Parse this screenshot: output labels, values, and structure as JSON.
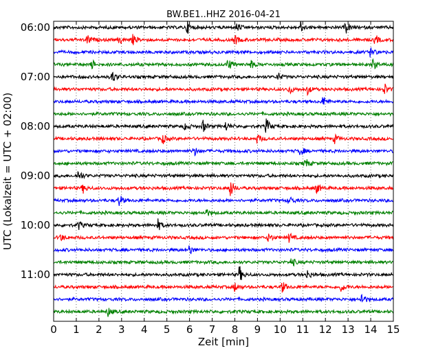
{
  "chart_data": {
    "type": "line",
    "title": "BW.BE1..HHZ 2016-04-21",
    "xlabel": "Zeit  [min]",
    "ylabel": "UTC (Lokalzeit = UTC + 02:00)",
    "xlim": [
      0,
      15
    ],
    "x_ticks": [
      0,
      1,
      2,
      3,
      4,
      5,
      6,
      7,
      8,
      9,
      10,
      11,
      12,
      13,
      14,
      15
    ],
    "x_tick_labels": [
      "0",
      "1",
      "2",
      "3",
      "4",
      "5",
      "6",
      "7",
      "8",
      "9",
      "10",
      "11",
      "12",
      "13",
      "14",
      "15"
    ],
    "y_tick_labels": [
      "06:00",
      "07:00",
      "08:00",
      "09:00",
      "10:00",
      "11:00"
    ],
    "row_start_time": "06:00",
    "row_interval_minutes": 15,
    "row_count": 24,
    "color_cycle": [
      "#000000",
      "#ff0000",
      "#0000ff",
      "#008000"
    ],
    "grid": "vertical dotted lines at each minute",
    "events": [
      {
        "row": 0,
        "minute": 5.9,
        "amp": 0.55
      },
      {
        "row": 0,
        "minute": 8.1,
        "amp": 0.4
      },
      {
        "row": 0,
        "minute": 10.9,
        "amp": 0.5
      },
      {
        "row": 0,
        "minute": 12.9,
        "amp": 0.55
      },
      {
        "row": 1,
        "minute": 1.5,
        "amp": 0.5
      },
      {
        "row": 1,
        "minute": 2.9,
        "amp": 0.45
      },
      {
        "row": 1,
        "minute": 3.5,
        "amp": 0.45
      },
      {
        "row": 1,
        "minute": 8.0,
        "amp": 0.45
      },
      {
        "row": 1,
        "minute": 14.2,
        "amp": 0.45
      },
      {
        "row": 2,
        "minute": 14.0,
        "amp": 0.5
      },
      {
        "row": 3,
        "minute": 1.7,
        "amp": 0.4
      },
      {
        "row": 3,
        "minute": 7.7,
        "amp": 0.6
      },
      {
        "row": 3,
        "minute": 8.7,
        "amp": 0.4
      },
      {
        "row": 3,
        "minute": 14.1,
        "amp": 0.5
      },
      {
        "row": 4,
        "minute": 2.6,
        "amp": 0.55
      },
      {
        "row": 4,
        "minute": 9.9,
        "amp": 0.4
      },
      {
        "row": 5,
        "minute": 10.4,
        "amp": 0.45
      },
      {
        "row": 5,
        "minute": 11.2,
        "amp": 0.45
      },
      {
        "row": 5,
        "minute": 14.6,
        "amp": 0.55
      },
      {
        "row": 6,
        "minute": 11.9,
        "amp": 0.5
      },
      {
        "row": 8,
        "minute": 5.8,
        "amp": 0.4
      },
      {
        "row": 8,
        "minute": 6.6,
        "amp": 0.55
      },
      {
        "row": 8,
        "minute": 7.6,
        "amp": 0.45
      },
      {
        "row": 8,
        "minute": 9.4,
        "amp": 0.8
      },
      {
        "row": 9,
        "minute": 4.8,
        "amp": 0.5
      },
      {
        "row": 9,
        "minute": 9.0,
        "amp": 0.45
      },
      {
        "row": 9,
        "minute": 12.4,
        "amp": 0.4
      },
      {
        "row": 10,
        "minute": 6.2,
        "amp": 0.45
      },
      {
        "row": 10,
        "minute": 10.9,
        "amp": 0.45
      },
      {
        "row": 11,
        "minute": 11.1,
        "amp": 0.5
      },
      {
        "row": 12,
        "minute": 1.1,
        "amp": 0.55
      },
      {
        "row": 13,
        "minute": 1.3,
        "amp": 0.4
      },
      {
        "row": 13,
        "minute": 7.8,
        "amp": 0.9
      },
      {
        "row": 13,
        "minute": 11.6,
        "amp": 0.5
      },
      {
        "row": 14,
        "minute": 2.9,
        "amp": 0.55
      },
      {
        "row": 14,
        "minute": 10.4,
        "amp": 0.45
      },
      {
        "row": 15,
        "minute": 6.7,
        "amp": 0.45
      },
      {
        "row": 16,
        "minute": 1.1,
        "amp": 0.4
      },
      {
        "row": 16,
        "minute": 4.6,
        "amp": 0.55
      },
      {
        "row": 17,
        "minute": 0.3,
        "amp": 0.35
      },
      {
        "row": 17,
        "minute": 9.5,
        "amp": 0.45
      },
      {
        "row": 17,
        "minute": 10.4,
        "amp": 0.45
      },
      {
        "row": 18,
        "minute": 6.0,
        "amp": 0.45
      },
      {
        "row": 19,
        "minute": 10.5,
        "amp": 0.45
      },
      {
        "row": 20,
        "minute": 8.2,
        "amp": 0.8
      },
      {
        "row": 20,
        "minute": 11.2,
        "amp": 0.4
      },
      {
        "row": 21,
        "minute": 8.0,
        "amp": 0.45
      },
      {
        "row": 21,
        "minute": 10.1,
        "amp": 0.5
      },
      {
        "row": 21,
        "minute": 12.7,
        "amp": 0.45
      },
      {
        "row": 22,
        "minute": 13.6,
        "amp": 0.6
      },
      {
        "row": 23,
        "minute": 2.4,
        "amp": 0.4
      }
    ]
  }
}
